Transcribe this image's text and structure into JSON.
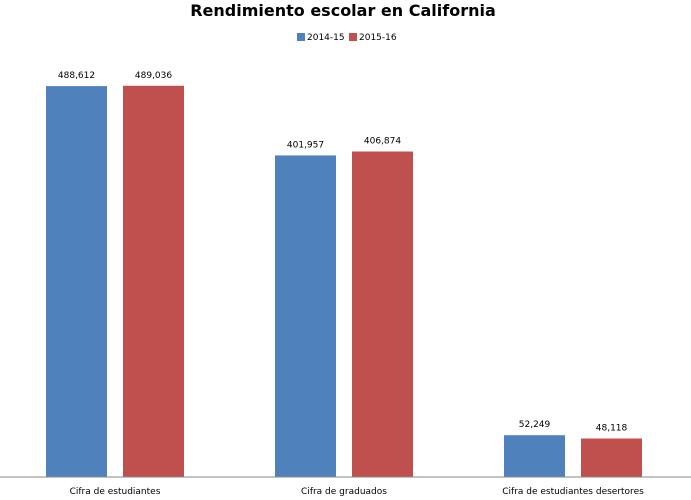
{
  "chart_data": {
    "type": "bar",
    "title": "Rendimiento escolar en California",
    "categories": [
      "Cifra de estudiantes",
      "Cifra de graduados",
      "Cifra de estudiantes desertores"
    ],
    "series": [
      {
        "name": "2014-15",
        "color": "#4f81bd",
        "values": [
          488612,
          401957,
          52249
        ],
        "labels": [
          "488,612",
          "401,957",
          "52,249"
        ]
      },
      {
        "name": "2015-16",
        "color": "#c0504d",
        "values": [
          489036,
          406874,
          48118
        ],
        "labels": [
          "489,036",
          "406,874",
          "48,118"
        ]
      }
    ],
    "ylim": [
      0,
      500000
    ],
    "grid": false,
    "legend": "top"
  }
}
